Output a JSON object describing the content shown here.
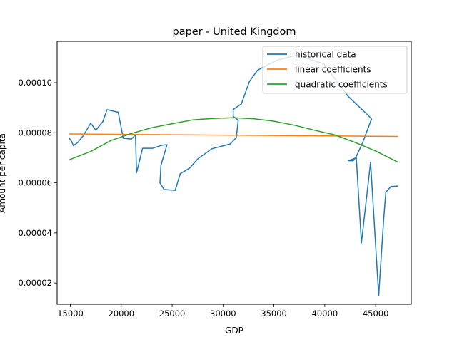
{
  "chart_data": {
    "type": "line",
    "title": "paper - United Kingdom",
    "xlabel": "GDP",
    "ylabel": "Amount per capita",
    "xlim": [
      13700,
      48500
    ],
    "ylim": [
      1.15e-05,
      0.0001165
    ],
    "xticks": [
      {
        "value": 15000,
        "label": "15000"
      },
      {
        "value": 20000,
        "label": "20000"
      },
      {
        "value": 25000,
        "label": "25000"
      },
      {
        "value": 30000,
        "label": "30000"
      },
      {
        "value": 35000,
        "label": "35000"
      },
      {
        "value": 40000,
        "label": "40000"
      },
      {
        "value": 45000,
        "label": "45000"
      }
    ],
    "yticks": [
      {
        "value": 2e-05,
        "label": "0.00002"
      },
      {
        "value": 4e-05,
        "label": "0.00004"
      },
      {
        "value": 6e-05,
        "label": "0.00006"
      },
      {
        "value": 8e-05,
        "label": "0.00008"
      },
      {
        "value": 0.0001,
        "label": "0.00010"
      }
    ],
    "grid": false,
    "legend_position": "top-right",
    "series": [
      {
        "name": "historical data",
        "color": "#1f77b4",
        "points": [
          [
            14900,
            7.78e-05
          ],
          [
            15150,
            7.63e-05
          ],
          [
            15300,
            7.48e-05
          ],
          [
            15700,
            7.6e-05
          ],
          [
            16300,
            7.9e-05
          ],
          [
            17000,
            8.38e-05
          ],
          [
            17500,
            8.1e-05
          ],
          [
            18200,
            8.45e-05
          ],
          [
            18600,
            8.92e-05
          ],
          [
            19700,
            8.82e-05
          ],
          [
            20200,
            7.78e-05
          ],
          [
            21000,
            7.75e-05
          ],
          [
            21400,
            7.92e-05
          ],
          [
            21500,
            6.4e-05
          ],
          [
            22100,
            7.38e-05
          ],
          [
            23100,
            7.38e-05
          ],
          [
            24000,
            7.5e-05
          ],
          [
            24500,
            7.52e-05
          ],
          [
            23900,
            6.7e-05
          ],
          [
            23800,
            6e-05
          ],
          [
            24200,
            5.73e-05
          ],
          [
            25300,
            5.7e-05
          ],
          [
            25800,
            6.37e-05
          ],
          [
            26700,
            6.58e-05
          ],
          [
            27500,
            6.95e-05
          ],
          [
            28900,
            7.36e-05
          ],
          [
            30700,
            7.55e-05
          ],
          [
            31300,
            7.8e-05
          ],
          [
            31500,
            8.5e-05
          ],
          [
            31000,
            8.65e-05
          ],
          [
            31000,
            8.93e-05
          ],
          [
            31800,
            9.15e-05
          ],
          [
            32600,
            0.0001005
          ],
          [
            33400,
            0.000105
          ],
          [
            35300,
            0.000109
          ],
          [
            37300,
            0.000111
          ],
          [
            39900,
            0.0001075
          ],
          [
            42300,
            9.45e-05
          ],
          [
            44200,
            8.72e-05
          ],
          [
            44600,
            8.55e-05
          ],
          [
            43700,
            7.58e-05
          ],
          [
            43100,
            7.05e-05
          ],
          [
            42800,
            6.88e-05
          ],
          [
            42300,
            6.88e-05
          ],
          [
            43100,
            7e-05
          ],
          [
            43600,
            3.6e-05
          ],
          [
            44500,
            6.82e-05
          ],
          [
            45300,
            1.5e-05
          ],
          [
            45800,
            4.6e-05
          ],
          [
            46000,
            5.62e-05
          ],
          [
            46500,
            5.85e-05
          ],
          [
            47200,
            5.87e-05
          ]
        ]
      },
      {
        "name": "linear coefficients",
        "color": "#ff7f0e",
        "points": [
          [
            14900,
            7.95e-05
          ],
          [
            47200,
            7.85e-05
          ]
        ]
      },
      {
        "name": "quadratic coefficients",
        "color": "#2ca02c",
        "points": [
          [
            14900,
            6.92e-05
          ],
          [
            17000,
            7.25e-05
          ],
          [
            19000,
            7.69e-05
          ],
          [
            21000,
            7.97e-05
          ],
          [
            23000,
            8.2e-05
          ],
          [
            25000,
            8.36e-05
          ],
          [
            27000,
            8.51e-05
          ],
          [
            29000,
            8.57e-05
          ],
          [
            31000,
            8.6e-05
          ],
          [
            33000,
            8.56e-05
          ],
          [
            35000,
            8.46e-05
          ],
          [
            37000,
            8.3e-05
          ],
          [
            39000,
            8.1e-05
          ],
          [
            41000,
            7.91e-05
          ],
          [
            43000,
            7.61e-05
          ],
          [
            45000,
            7.27e-05
          ],
          [
            47200,
            6.82e-05
          ]
        ]
      }
    ]
  }
}
